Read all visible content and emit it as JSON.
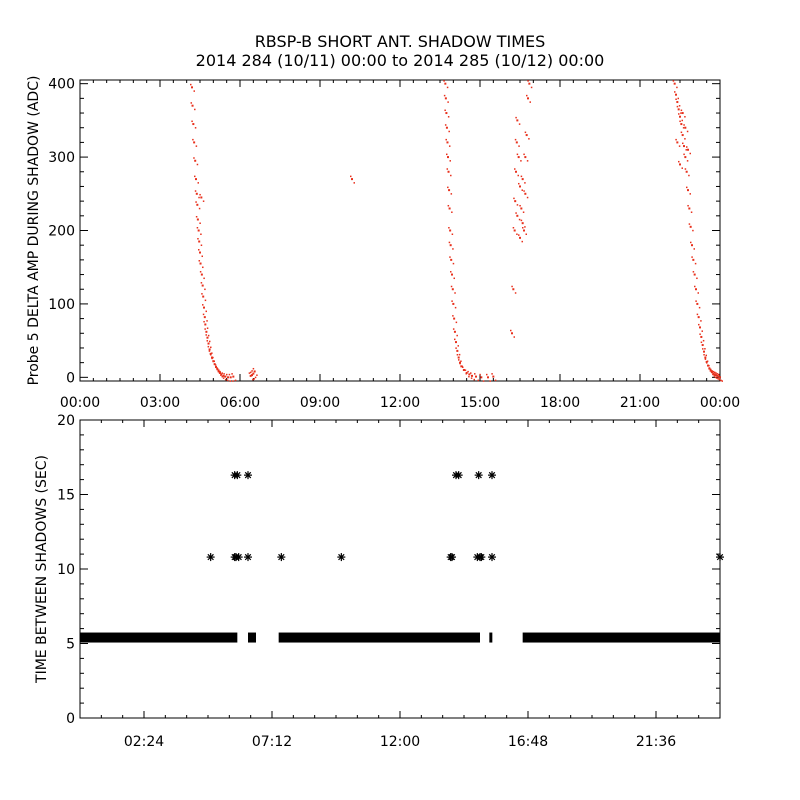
{
  "title_line1": "RBSP-B SHORT ANT. SHADOW TIMES",
  "title_line2": "2014 284 (10/11) 00:00 to 2014 285 (10/12) 00:00",
  "colors": {
    "top_points": "#e8301c",
    "bottom_points": "#000000",
    "axes": "#000000"
  },
  "chart_data": [
    {
      "type": "scatter",
      "ylabel": "Probe 5 DELTA AMP DURING SHADOW (ADC)",
      "xlabel": "",
      "x_unit": "hours",
      "xlim": [
        0,
        24
      ],
      "ylim": [
        -5,
        405
      ],
      "xticks": [
        {
          "value": 0,
          "label": "00:00"
        },
        {
          "value": 3,
          "label": "03:00"
        },
        {
          "value": 6,
          "label": "06:00"
        },
        {
          "value": 9,
          "label": "09:00"
        },
        {
          "value": 12,
          "label": "12:00"
        },
        {
          "value": 15,
          "label": "15:00"
        },
        {
          "value": 18,
          "label": "18:00"
        },
        {
          "value": 21,
          "label": "21:00"
        },
        {
          "value": 24,
          "label": "00:00"
        }
      ],
      "yticks": [
        {
          "value": 0,
          "label": "0"
        },
        {
          "value": 100,
          "label": "100"
        },
        {
          "value": 200,
          "label": "200"
        },
        {
          "value": 300,
          "label": "300"
        },
        {
          "value": 400,
          "label": "400"
        }
      ],
      "series": [
        {
          "color": "#e8301c",
          "points": [
            [
              4.2,
              395
            ],
            [
              4.22,
              370
            ],
            [
              4.25,
              345
            ],
            [
              4.28,
              320
            ],
            [
              4.32,
              295
            ],
            [
              4.35,
              270
            ],
            [
              4.38,
              250
            ],
            [
              4.4,
              235
            ],
            [
              4.42,
              215
            ],
            [
              4.45,
              200
            ],
            [
              4.47,
              185
            ],
            [
              4.5,
              170
            ],
            [
              4.52,
              155
            ],
            [
              4.55,
              245
            ],
            [
              4.57,
              140
            ],
            [
              4.6,
              125
            ],
            [
              4.62,
              110
            ],
            [
              4.65,
              95
            ],
            [
              4.68,
              82
            ],
            [
              4.7,
              72
            ],
            [
              4.74,
              62
            ],
            [
              4.78,
              54
            ],
            [
              4.82,
              46
            ],
            [
              4.86,
              38
            ],
            [
              4.9,
              32
            ],
            [
              4.95,
              27
            ],
            [
              5.0,
              22
            ],
            [
              5.05,
              18
            ],
            [
              5.1,
              14
            ],
            [
              5.15,
              11
            ],
            [
              5.2,
              8
            ],
            [
              5.25,
              6
            ],
            [
              5.3,
              4
            ],
            [
              5.38,
              2
            ],
            [
              5.45,
              1
            ],
            [
              5.55,
              0
            ],
            [
              5.65,
              0
            ],
            [
              5.75,
              1
            ],
            [
              6.4,
              2
            ],
            [
              6.5,
              5
            ],
            [
              6.55,
              8
            ],
            [
              6.45,
              3
            ],
            [
              10.2,
              270
            ],
            [
              13.7,
              400
            ],
            [
              13.72,
              380
            ],
            [
              13.74,
              360
            ],
            [
              13.76,
              340
            ],
            [
              13.78,
              320
            ],
            [
              13.8,
              300
            ],
            [
              13.82,
              280
            ],
            [
              13.84,
              255
            ],
            [
              13.86,
              230
            ],
            [
              13.88,
              200
            ],
            [
              13.9,
              180
            ],
            [
              13.92,
              160
            ],
            [
              13.95,
              140
            ],
            [
              13.98,
              120
            ],
            [
              14.0,
              100
            ],
            [
              14.03,
              80
            ],
            [
              14.06,
              62
            ],
            [
              14.1,
              48
            ],
            [
              14.15,
              36
            ],
            [
              14.2,
              27
            ],
            [
              14.25,
              20
            ],
            [
              14.3,
              15
            ],
            [
              14.4,
              10
            ],
            [
              14.5,
              6
            ],
            [
              14.6,
              4
            ],
            [
              14.7,
              2
            ],
            [
              14.85,
              1
            ],
            [
              15.05,
              0
            ],
            [
              15.3,
              0
            ],
            [
              15.5,
              1
            ],
            [
              16.2,
              60
            ],
            [
              16.25,
              120
            ],
            [
              16.3,
              200
            ],
            [
              16.32,
              240
            ],
            [
              16.35,
              280
            ],
            [
              16.38,
              320
            ],
            [
              16.4,
              350
            ],
            [
              16.45,
              300
            ],
            [
              16.5,
              260
            ],
            [
              16.55,
              230
            ],
            [
              16.6,
              210
            ],
            [
              16.65,
              200
            ],
            [
              16.7,
              250
            ],
            [
              16.75,
              330
            ],
            [
              16.8,
              380
            ],
            [
              16.85,
              400
            ],
            [
              16.4,
              220
            ],
            [
              16.5,
              190
            ],
            [
              16.6,
              270
            ],
            [
              16.7,
              300
            ],
            [
              22.3,
              400
            ],
            [
              22.35,
              385
            ],
            [
              22.4,
              375
            ],
            [
              22.45,
              365
            ],
            [
              22.5,
              355
            ],
            [
              22.55,
              345
            ],
            [
              22.6,
              330
            ],
            [
              22.65,
              315
            ],
            [
              22.7,
              300
            ],
            [
              22.75,
              280
            ],
            [
              22.8,
              255
            ],
            [
              22.85,
              230
            ],
            [
              22.9,
              205
            ],
            [
              22.95,
              180
            ],
            [
              23.0,
              160
            ],
            [
              23.05,
              140
            ],
            [
              23.1,
              120
            ],
            [
              23.15,
              100
            ],
            [
              23.2,
              82
            ],
            [
              23.25,
              68
            ],
            [
              23.3,
              55
            ],
            [
              23.35,
              44
            ],
            [
              23.4,
              35
            ],
            [
              23.45,
              27
            ],
            [
              23.5,
              21
            ],
            [
              23.55,
              16
            ],
            [
              23.6,
              12
            ],
            [
              23.65,
              9
            ],
            [
              23.7,
              7
            ],
            [
              23.75,
              5
            ],
            [
              23.8,
              4
            ],
            [
              23.85,
              3
            ],
            [
              23.9,
              2
            ],
            [
              23.95,
              1
            ],
            [
              24.0,
              0
            ],
            [
              22.4,
              320
            ],
            [
              22.5,
              290
            ],
            [
              22.6,
              360
            ],
            [
              22.7,
              340
            ],
            [
              22.8,
              310
            ]
          ]
        }
      ]
    },
    {
      "type": "scatter",
      "ylabel": "TIME BETWEEN SHADOWS (SEC)",
      "xlabel": "",
      "x_unit": "hours",
      "xlim": [
        0,
        24
      ],
      "ylim": [
        0,
        20
      ],
      "xticks": [
        {
          "value": 2.4,
          "label": "02:24"
        },
        {
          "value": 7.2,
          "label": "07:12"
        },
        {
          "value": 12.0,
          "label": "12:00"
        },
        {
          "value": 16.8,
          "label": "16:48"
        },
        {
          "value": 21.6,
          "label": "21:36"
        }
      ],
      "yticks": [
        {
          "value": 0,
          "label": "0"
        },
        {
          "value": 5,
          "label": "5"
        },
        {
          "value": 10,
          "label": "10"
        },
        {
          "value": 15,
          "label": "15"
        },
        {
          "value": 20,
          "label": "20"
        }
      ],
      "baseline": {
        "y": 5.4,
        "ranges": [
          [
            0.0,
            5.9
          ],
          [
            6.3,
            6.6
          ],
          [
            7.45,
            15.0
          ],
          [
            15.35,
            15.45
          ],
          [
            16.6,
            24.0
          ]
        ]
      },
      "series": [
        {
          "color": "#000000",
          "marker": "asterisk",
          "points": [
            [
              4.9,
              10.8
            ],
            [
              5.8,
              10.8
            ],
            [
              5.85,
              10.8
            ],
            [
              5.95,
              10.8
            ],
            [
              6.3,
              10.8
            ],
            [
              7.55,
              10.8
            ],
            [
              9.8,
              10.8
            ],
            [
              13.9,
              10.8
            ],
            [
              13.95,
              10.8
            ],
            [
              14.9,
              10.8
            ],
            [
              15.0,
              10.8
            ],
            [
              15.05,
              10.8
            ],
            [
              15.45,
              10.8
            ],
            [
              24.0,
              10.8
            ],
            [
              5.8,
              16.3
            ],
            [
              5.9,
              16.3
            ],
            [
              6.3,
              16.3
            ],
            [
              14.1,
              16.3
            ],
            [
              14.2,
              16.3
            ],
            [
              14.95,
              16.3
            ],
            [
              15.45,
              16.3
            ]
          ]
        }
      ]
    }
  ]
}
